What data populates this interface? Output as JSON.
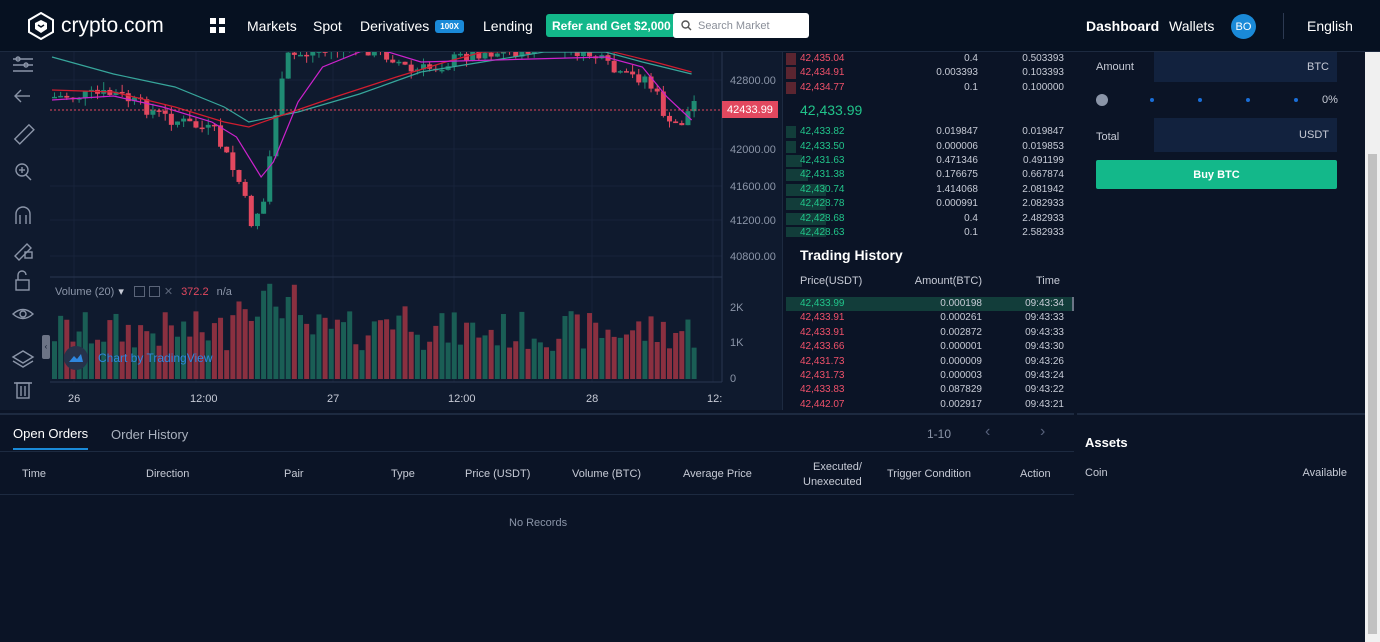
{
  "header": {
    "brand": "crypto.com",
    "nav": [
      "Markets",
      "Spot",
      "Derivatives",
      "Lending"
    ],
    "derivatives_badge": "100X",
    "refer_label": "Refer and Get $2,000",
    "search_placeholder": "Search Market",
    "dashboard": "Dashboard",
    "wallets": "Wallets",
    "avatar_initials": "BO",
    "language": "English"
  },
  "chart": {
    "price_axis": [
      "42800.00",
      "42000.00",
      "41600.00",
      "41200.00",
      "40800.00"
    ],
    "current_price_tag": "42433.99",
    "volume_label": "Volume (20)",
    "volume_value": "372.2",
    "volume_na": "n/a",
    "volume_axis": [
      "2K",
      "1K",
      "0"
    ],
    "time_axis": [
      "26",
      "12:00",
      "27",
      "12:00",
      "28",
      "12:"
    ],
    "watermark": "Chart by TradingView",
    "colors": {
      "up": "#1f8b73",
      "down": "#e2485f",
      "ma_fast": "#cc22cc",
      "ma_mid": "#d11d2f",
      "ma_slow": "#37a69b"
    }
  },
  "orderbook": {
    "asks": [
      {
        "price": "42,435.04",
        "amount": "0.4",
        "total": "0.503393"
      },
      {
        "price": "42,434.91",
        "amount": "0.003393",
        "total": "0.103393"
      },
      {
        "price": "42,434.77",
        "amount": "0.1",
        "total": "0.100000"
      }
    ],
    "last_price": "42,433.99",
    "bids": [
      {
        "price": "42,433.82",
        "amount": "0.019847",
        "total": "0.019847"
      },
      {
        "price": "42,433.50",
        "amount": "0.000006",
        "total": "0.019853"
      },
      {
        "price": "42,431.63",
        "amount": "0.471346",
        "total": "0.491199"
      },
      {
        "price": "42,431.38",
        "amount": "0.176675",
        "total": "0.667874"
      },
      {
        "price": "42,430.74",
        "amount": "1.414068",
        "total": "2.081942"
      },
      {
        "price": "42,428.78",
        "amount": "0.000991",
        "total": "2.082933"
      },
      {
        "price": "42,428.68",
        "amount": "0.4",
        "total": "2.482933"
      },
      {
        "price": "42,428.63",
        "amount": "0.1",
        "total": "2.582933"
      }
    ]
  },
  "trading_history": {
    "title": "Trading History",
    "headers": [
      "Price(USDT)",
      "Amount(BTC)",
      "Time"
    ],
    "rows": [
      {
        "price": "42,433.99",
        "amount": "0.000198",
        "time": "09:43:34",
        "side": "buy"
      },
      {
        "price": "42,433.91",
        "amount": "0.000261",
        "time": "09:43:33",
        "side": "sell"
      },
      {
        "price": "42,433.91",
        "amount": "0.002872",
        "time": "09:43:33",
        "side": "sell"
      },
      {
        "price": "42,433.66",
        "amount": "0.000001",
        "time": "09:43:30",
        "side": "sell"
      },
      {
        "price": "42,431.73",
        "amount": "0.000009",
        "time": "09:43:26",
        "side": "sell"
      },
      {
        "price": "42,431.73",
        "amount": "0.000003",
        "time": "09:43:24",
        "side": "sell"
      },
      {
        "price": "42,433.83",
        "amount": "0.087829",
        "time": "09:43:22",
        "side": "sell"
      },
      {
        "price": "42,442.07",
        "amount": "0.002917",
        "time": "09:43:21",
        "side": "sell"
      }
    ]
  },
  "order_form": {
    "amount_label": "Amount",
    "amount_unit": "BTC",
    "slider_percent": "0%",
    "total_label": "Total",
    "total_unit": "USDT",
    "buy_label": "Buy BTC"
  },
  "orders": {
    "tabs": [
      "Open Orders",
      "Order History"
    ],
    "pagination": "1-10",
    "columns": [
      "Time",
      "Direction",
      "Pair",
      "Type",
      "Price (USDT)",
      "Volume (BTC)",
      "Average Price",
      "Executed/",
      "Unexecuted",
      "Trigger Condition",
      "Action"
    ],
    "empty": "No Records"
  },
  "assets": {
    "title": "Assets",
    "coin": "Coin",
    "available": "Available"
  }
}
